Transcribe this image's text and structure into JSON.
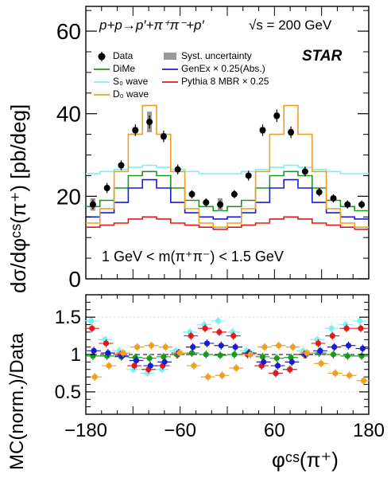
{
  "labels": {
    "process": "p+p→p′+π⁺π⁻+p′",
    "sqrts": "√s = 200 GeV",
    "experiment": "STAR",
    "mass_range": "1 GeV < m(π⁺π⁻) < 1.5 GeV",
    "ylabel_top": "dσ/dφᶜˢ(π⁺) [pb/deg]",
    "ylabel_bottom": "MC(norm.)/Data",
    "xlabel": "φᶜˢ(π⁺)"
  },
  "legend": {
    "data": "Data",
    "syst": "Syst. uncertainty",
    "dime": "DiMe",
    "genex": "GenEx × 0.25(Abs.)",
    "s0": "S₀ wave",
    "pythia": "Pythia 8 MBR × 0.25",
    "d0": "D₀ wave"
  },
  "colors": {
    "data": "#000000",
    "dime": "#1a9a1a",
    "genex": "#1a1ad6",
    "s0": "#7ff0f0",
    "pythia": "#e01a1a",
    "d0": "#f0a020",
    "syst": "#999999"
  },
  "chart_data": [
    {
      "type": "line",
      "panel": "top",
      "xlabel": "φᶜˢ(π⁺)",
      "ylabel": "dσ/dφᶜˢ(π⁺) [pb/deg]",
      "xlim": [
        -180,
        180
      ],
      "ylim": [
        0,
        66
      ],
      "yticks": [
        0,
        20,
        40,
        60
      ],
      "bin_edges": [
        -180,
        -162,
        -144,
        -126,
        -108,
        -90,
        -72,
        -54,
        -36,
        -18,
        0,
        18,
        36,
        54,
        72,
        90,
        108,
        126,
        144,
        162,
        180
      ],
      "data": {
        "x": [
          -171,
          -153,
          -135,
          -117,
          -99,
          -81,
          -63,
          -45,
          -27,
          -9,
          9,
          27,
          45,
          63,
          81,
          99,
          117,
          135,
          153,
          171
        ],
        "y": [
          18,
          22,
          27.5,
          36,
          38,
          34.5,
          26.5,
          20.5,
          18.5,
          18,
          20.5,
          25,
          36,
          39.5,
          35.5,
          26,
          21,
          19.5,
          18,
          18
        ],
        "err": [
          1.2,
          1.2,
          1.2,
          1.4,
          1.6,
          1.4,
          1.2,
          1.0,
          1.0,
          1.0,
          1.0,
          1.2,
          1.4,
          1.5,
          1.4,
          1.2,
          1.0,
          1.0,
          1.0,
          1.0
        ],
        "syst": [
          1.5,
          0.5,
          0.5,
          0.8,
          2.5,
          0.8,
          0.5,
          0.5,
          0.5,
          1.5,
          0.5,
          0.5,
          0.8,
          0.8,
          0.8,
          0.5,
          0.5,
          0.5,
          0.5,
          0.5
        ]
      },
      "series": [
        {
          "name": "DiMe",
          "values": [
            17.5,
            19,
            22,
            25,
            26,
            25,
            22,
            19,
            17.5,
            16.5,
            17.5,
            19,
            22,
            25,
            26,
            25,
            22,
            19,
            17.5,
            16.5
          ]
        },
        {
          "name": "GenEx × 0.25(Abs.)",
          "values": [
            15,
            16,
            18.5,
            22,
            24,
            22,
            18.5,
            16,
            15,
            14.5,
            15,
            16,
            18.5,
            22,
            24,
            22,
            18.5,
            16,
            15,
            14.5
          ]
        },
        {
          "name": "S₀ wave",
          "values": [
            25.5,
            26,
            26.5,
            27,
            27.5,
            27,
            26.5,
            26,
            25.5,
            25.5,
            25.5,
            26,
            26.5,
            27,
            27.5,
            27,
            26.5,
            26,
            25.5,
            25.5
          ]
        },
        {
          "name": "Pythia 8 MBR × 0.25",
          "values": [
            12.5,
            13,
            13.5,
            14.5,
            15,
            14.5,
            13.5,
            13,
            12.5,
            12,
            12.5,
            13,
            13.5,
            14.5,
            15,
            14.5,
            13.5,
            13,
            12.5,
            12
          ]
        },
        {
          "name": "D₀ wave",
          "values": [
            13.5,
            17,
            26,
            35,
            42,
            35,
            26,
            17,
            13.5,
            12.5,
            13.5,
            17,
            26,
            35,
            42,
            35,
            26,
            17,
            13.5,
            12.5
          ]
        }
      ],
      "annotation": "1 GeV < m(π⁺π⁻) < 1.5 GeV"
    },
    {
      "type": "scatter",
      "panel": "bottom",
      "xlabel": "φᶜˢ(π⁺)",
      "ylabel": "MC(norm.)/Data",
      "xlim": [
        -180,
        180
      ],
      "ylim": [
        0.2,
        1.8
      ],
      "yticks": [
        0.5,
        1,
        1.5
      ],
      "xticks": [
        -180,
        -60,
        60,
        180
      ],
      "reference_line": 1,
      "x": [
        -171,
        -153,
        -135,
        -117,
        -99,
        -81,
        -63,
        -45,
        -27,
        -9,
        9,
        27,
        45,
        63,
        81,
        99,
        117,
        135,
        153,
        171
      ],
      "series": [
        {
          "name": "S₀ wave",
          "values": [
            1.45,
            1.2,
            1.05,
            0.8,
            0.75,
            0.8,
            1.05,
            1.3,
            1.4,
            1.45,
            1.3,
            1.05,
            0.85,
            0.75,
            0.8,
            1.05,
            1.2,
            1.35,
            1.4,
            1.45
          ]
        },
        {
          "name": "Pythia 8 MBR × 0.25",
          "values": [
            1.35,
            1.15,
            1.0,
            0.85,
            0.8,
            0.85,
            1.0,
            1.25,
            1.35,
            1.3,
            1.25,
            1.0,
            0.85,
            0.75,
            0.8,
            1.0,
            1.15,
            1.25,
            1.35,
            1.35
          ]
        },
        {
          "name": "DiMe",
          "values": [
            0.98,
            0.98,
            0.97,
            0.96,
            0.95,
            0.97,
            1.0,
            1.02,
            1.0,
            0.99,
            1.0,
            1.02,
            0.97,
            0.95,
            0.96,
            1.0,
            1.02,
            1.0,
            0.98,
            0.98
          ]
        },
        {
          "name": "GenEx × 0.25(Abs.)",
          "values": [
            1.05,
            1.02,
            0.98,
            0.92,
            0.85,
            0.9,
            1.02,
            1.1,
            1.15,
            1.12,
            1.1,
            1.02,
            0.9,
            0.85,
            0.9,
            1.0,
            1.05,
            1.1,
            1.12,
            1.08
          ]
        },
        {
          "name": "D₀ wave",
          "values": [
            0.7,
            0.85,
            1.02,
            1.1,
            1.12,
            1.1,
            1.02,
            0.85,
            0.7,
            0.72,
            0.82,
            1.0,
            1.1,
            1.12,
            1.1,
            1.02,
            0.88,
            0.75,
            0.72,
            0.65
          ]
        }
      ]
    }
  ]
}
